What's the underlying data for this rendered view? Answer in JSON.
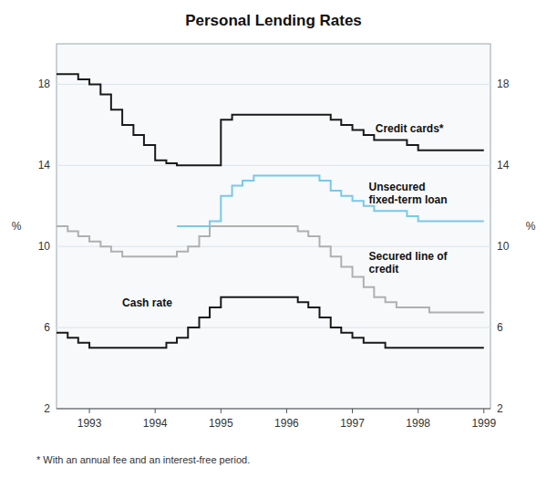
{
  "chart_data": {
    "type": "step",
    "title": "Personal Lending Rates",
    "ylabel": "%",
    "y2label": "%",
    "footnote": "* With an annual fee and an interest-free period.",
    "xlim": [
      1992.5,
      1999.1
    ],
    "xticks": [
      1993,
      1994,
      1995,
      1996,
      1997,
      1998,
      1999
    ],
    "ylim": [
      2,
      20
    ],
    "yticks": [
      2,
      6,
      10,
      14,
      18
    ],
    "y2lim": [
      2,
      20
    ],
    "y2ticks": [
      2,
      6,
      10,
      14,
      18
    ],
    "grid": true,
    "series": [
      {
        "color": "#1a1a1a",
        "x": [
          1992.5,
          1992.67,
          1992.83,
          1993.0,
          1993.17,
          1993.33,
          1993.5,
          1993.67,
          1993.83,
          1994.0,
          1994.17,
          1994.33,
          1994.5,
          1994.67,
          1994.83,
          1995.0,
          1995.17,
          1995.33,
          1995.5,
          1995.67,
          1995.83,
          1996.0,
          1996.17,
          1996.33,
          1996.5,
          1996.67,
          1996.83,
          1997.0,
          1997.17,
          1997.33,
          1997.5,
          1997.67,
          1997.83,
          1998.0,
          1998.17,
          1998.33,
          1998.5,
          1998.67,
          1998.83,
          1999.0
        ],
        "values": [
          18.5,
          18.5,
          18.25,
          18.0,
          17.5,
          16.75,
          16.0,
          15.5,
          15.0,
          14.25,
          14.1,
          14.0,
          14.0,
          14.0,
          14.0,
          16.25,
          16.5,
          16.5,
          16.5,
          16.5,
          16.5,
          16.5,
          16.5,
          16.5,
          16.5,
          16.25,
          16.0,
          15.75,
          15.5,
          15.25,
          15.25,
          15.25,
          15.0,
          14.75,
          14.75,
          14.75,
          14.75,
          14.75,
          14.75,
          14.75
        ]
      },
      {
        "color": "#7bc8e8",
        "x": [
          1994.33,
          1994.5,
          1994.67,
          1994.83,
          1995.0,
          1995.17,
          1995.33,
          1995.5,
          1995.67,
          1995.83,
          1996.0,
          1996.17,
          1996.33,
          1996.5,
          1996.67,
          1996.83,
          1997.0,
          1997.17,
          1997.33,
          1997.5,
          1997.67,
          1997.83,
          1998.0,
          1998.17,
          1998.33,
          1998.5,
          1998.83,
          1999.0
        ],
        "values": [
          11.0,
          11.0,
          11.0,
          11.25,
          12.5,
          13.0,
          13.25,
          13.5,
          13.5,
          13.5,
          13.5,
          13.5,
          13.5,
          13.25,
          12.75,
          12.5,
          12.25,
          12.0,
          11.75,
          11.75,
          11.75,
          11.5,
          11.25,
          11.25,
          11.25,
          11.25,
          11.25,
          11.25
        ]
      },
      {
        "color": "#b0b0b0",
        "x": [
          1992.5,
          1992.67,
          1992.83,
          1993.0,
          1993.17,
          1993.33,
          1993.5,
          1993.67,
          1993.83,
          1994.0,
          1994.17,
          1994.33,
          1994.5,
          1994.67,
          1994.83,
          1995.0,
          1995.17,
          1995.33,
          1995.5,
          1995.67,
          1995.83,
          1996.0,
          1996.17,
          1996.33,
          1996.5,
          1996.67,
          1996.83,
          1997.0,
          1997.17,
          1997.33,
          1997.5,
          1997.67,
          1997.83,
          1998.0,
          1998.17,
          1998.33,
          1998.5,
          1998.67,
          1998.83,
          1999.0
        ],
        "values": [
          11.0,
          10.75,
          10.5,
          10.25,
          10.0,
          9.75,
          9.5,
          9.5,
          9.5,
          9.5,
          9.5,
          9.75,
          10.0,
          10.5,
          11.0,
          11.0,
          11.0,
          11.0,
          11.0,
          11.0,
          11.0,
          11.0,
          10.75,
          10.5,
          10.0,
          9.5,
          9.0,
          8.5,
          8.0,
          7.5,
          7.25,
          7.0,
          7.0,
          7.0,
          6.75,
          6.75,
          6.75,
          6.75,
          6.75,
          6.75
        ]
      },
      {
        "color": "#1a1a1a",
        "x": [
          1992.5,
          1992.67,
          1992.83,
          1993.0,
          1993.17,
          1993.33,
          1993.5,
          1993.67,
          1993.83,
          1994.0,
          1994.17,
          1994.33,
          1994.5,
          1994.67,
          1994.83,
          1995.0,
          1995.17,
          1995.33,
          1995.5,
          1995.67,
          1995.83,
          1996.0,
          1996.17,
          1996.33,
          1996.5,
          1996.67,
          1996.83,
          1997.0,
          1997.17,
          1997.33,
          1997.5,
          1997.67,
          1997.83,
          1998.0,
          1998.17,
          1998.33,
          1998.5,
          1998.67,
          1998.83,
          1999.0
        ],
        "values": [
          5.75,
          5.5,
          5.25,
          5.0,
          5.0,
          5.0,
          5.0,
          5.0,
          5.0,
          5.0,
          5.25,
          5.5,
          6.0,
          6.5,
          7.0,
          7.5,
          7.5,
          7.5,
          7.5,
          7.5,
          7.5,
          7.5,
          7.25,
          7.0,
          6.5,
          6.0,
          5.75,
          5.5,
          5.25,
          5.25,
          5.0,
          5.0,
          5.0,
          5.0,
          5.0,
          5.0,
          5.0,
          5.0,
          5.0,
          5.0
        ]
      }
    ],
    "annotations": [
      {
        "text": "Credit cards*",
        "x": 1997.35,
        "y": 15.8
      },
      {
        "text": "Unsecured\nfixed-term loan",
        "x": 1997.25,
        "y": 12.6
      },
      {
        "text": "Secured line of\ncredit",
        "x": 1997.25,
        "y": 9.2
      },
      {
        "text": "Cash rate",
        "x": 1993.5,
        "y": 7.2
      }
    ]
  }
}
